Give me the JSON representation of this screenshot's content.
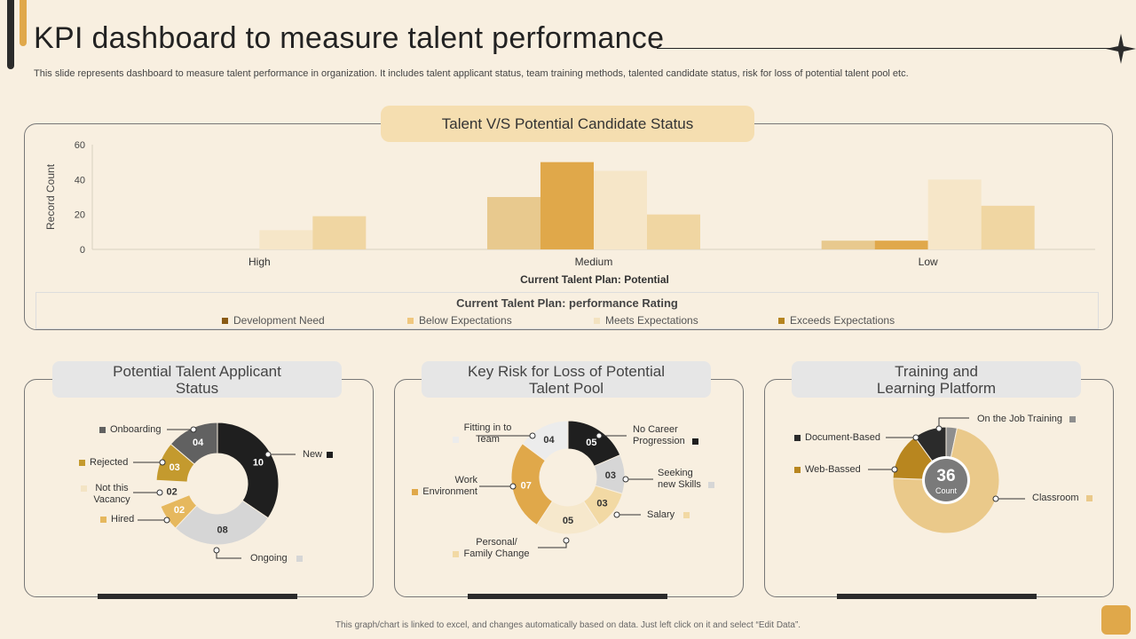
{
  "title": "KPI dashboard to measure talent performance",
  "subtitle": "This slide represents dashboard to measure talent performance in organization. It includes talent applicant status, team training methods, talented candidate status, risk for loss of potential talent pool etc.",
  "footer": "This graph/chart is linked to excel, and changes automatically based on data. Just left click on it and select “Edit Data”.",
  "colors": {
    "background": "#f8efe0",
    "accent": "#e0a84a",
    "dark": "#2b2b2b"
  },
  "chart_data": [
    {
      "type": "bar",
      "title": "Talent V/S Potential Candidate Status",
      "xlabel": "Current Talent Plan: Potential",
      "ylabel": "Record Count",
      "legend_title": "Current Talent Plan: performance Rating",
      "legend_position": "bottom",
      "ylim": [
        0,
        60
      ],
      "yticks": [
        "0",
        "20",
        "40",
        "60"
      ],
      "categories": [
        "High",
        "Medium",
        "Low"
      ],
      "series": [
        {
          "name": "Development Need",
          "color": "#e8c98e",
          "values": [
            0,
            30,
            5
          ]
        },
        {
          "name": "Below Expectations",
          "color": "#e0a84a",
          "values": [
            0,
            50,
            5
          ]
        },
        {
          "name": "Meets Expectations",
          "color": "#f6e6c8",
          "values": [
            11,
            45,
            40
          ]
        },
        {
          "name": "Exceeds Expectations",
          "color": "#f0d6a2",
          "values": [
            19,
            20,
            25
          ]
        }
      ],
      "legend_swatches": [
        "#8a5a14",
        "#f0c77e",
        "#f3e2c0",
        "#b58420"
      ]
    },
    {
      "type": "pie",
      "title": "Potential Talent Applicant Status",
      "slices": [
        {
          "name": "New",
          "value": 10,
          "label": "10",
          "color": "#1f1f1f"
        },
        {
          "name": "Ongoing",
          "value": 8,
          "label": "08",
          "color": "#d6d6d6"
        },
        {
          "name": "Hired",
          "value": 2,
          "label": "02",
          "color": "#e6b85e"
        },
        {
          "name": "Not this Vacancy",
          "value": 2,
          "label": "02",
          "color": "#f8efe0"
        },
        {
          "name": "Rejected",
          "value": 3,
          "label": "03",
          "color": "#c49a2e"
        },
        {
          "name": "Onboarding",
          "value": 4,
          "label": "04",
          "color": "#616161"
        }
      ]
    },
    {
      "type": "pie",
      "title": "Key Risk for Loss of Potential Talent Pool",
      "slices": [
        {
          "name": "No Career Progression",
          "value": 5,
          "label": "05",
          "color": "#1f1f1f"
        },
        {
          "name": "Seeking new Skills",
          "value": 3,
          "label": "03",
          "color": "#d6d6d6"
        },
        {
          "name": "Salary",
          "value": 3,
          "label": "03",
          "color": "#f2d9a4"
        },
        {
          "name": "Personal/ Family Change",
          "value": 5,
          "label": "05",
          "color": "#f6e8cc"
        },
        {
          "name": "Work Environment",
          "value": 7,
          "label": "07",
          "color": "#e0a84a"
        },
        {
          "name": "Fitting in to Team",
          "value": 4,
          "label": "04",
          "color": "#ececec"
        }
      ]
    },
    {
      "type": "pie",
      "title": "Training and Learning Platform",
      "center_value": "36",
      "center_label": "Count",
      "slices": [
        {
          "name": "On the Job Training",
          "value": 1.2,
          "color": "#8e8e8e"
        },
        {
          "name": "Classroom",
          "value": 26,
          "color": "#eac98a"
        },
        {
          "name": "Web-Bassed",
          "value": 5.2,
          "color": "#b8861f"
        },
        {
          "name": "Document-Based",
          "value": 3.6,
          "color": "#2b2b2b"
        }
      ]
    }
  ]
}
